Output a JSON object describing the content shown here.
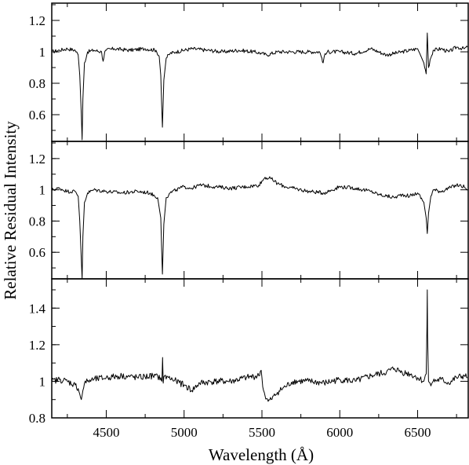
{
  "chart_data": {
    "type": "line",
    "xlabel": "Wavelength (Å)",
    "ylabel": "Relative Residual Intensity",
    "shared_x": true,
    "xlim": [
      4150,
      6830
    ],
    "x_ticks": [
      4500,
      5000,
      5500,
      6000,
      6500
    ],
    "x_tick_labels": [
      "4500",
      "5000",
      "5500",
      "6000",
      "6500"
    ],
    "panels": [
      {
        "ylim": [
          0.43,
          1.31
        ],
        "y_ticks": [
          0.6,
          0.8,
          1.0,
          1.2
        ],
        "y_tick_labels": [
          "0.6",
          "0.8",
          "1",
          "1.2"
        ],
        "series": [
          {
            "x": [
              4150,
              4200,
              4250,
              4300,
              4320,
              4330,
              4340,
              4345,
              4350,
              4360,
              4380,
              4420,
              4470,
              4480,
              4490,
              4500,
              4550,
              4650,
              4750,
              4820,
              4840,
              4850,
              4861,
              4870,
              4885,
              4910,
              4950,
              5050,
              5150,
              5250,
              5350,
              5450,
              5500,
              5530,
              5600,
              5700,
              5800,
              5870,
              5885,
              5893,
              5900,
              5920,
              6000,
              6100,
              6200,
              6300,
              6400,
              6450,
              6500,
              6540,
              6555,
              6562,
              6570,
              6580,
              6600,
              6650,
              6700,
              6750,
              6800,
              6820
            ],
            "y": [
              1.0,
              1.01,
              1.02,
              1.01,
              0.98,
              0.85,
              0.6,
              0.44,
              0.7,
              0.93,
              1.0,
              1.01,
              1.0,
              0.94,
              1.0,
              1.01,
              1.02,
              1.01,
              1.02,
              1.01,
              0.97,
              0.85,
              0.52,
              0.82,
              0.96,
              0.99,
              1.0,
              1.02,
              1.01,
              1.0,
              1.01,
              1.0,
              0.99,
              0.98,
              1.0,
              1.0,
              1.0,
              1.0,
              0.96,
              0.93,
              0.97,
              1.0,
              1.0,
              0.99,
              1.02,
              0.98,
              1.0,
              1.01,
              1.02,
              0.93,
              0.86,
              1.12,
              0.9,
              0.95,
              1.01,
              1.02,
              1.0,
              1.03,
              1.02,
              1.03
            ]
          }
        ]
      },
      {
        "ylim": [
          0.43,
          1.31
        ],
        "y_ticks": [
          0.6,
          0.8,
          1.0,
          1.2
        ],
        "y_tick_labels": [
          "0.6",
          "0.8",
          "1",
          "1.2"
        ],
        "series": [
          {
            "x": [
              4150,
              4200,
              4250,
              4300,
              4320,
              4330,
              4340,
              4345,
              4350,
              4360,
              4380,
              4420,
              4500,
              4600,
              4700,
              4780,
              4830,
              4850,
              4861,
              4870,
              4885,
              4910,
              4950,
              5000,
              5050,
              5100,
              5200,
              5300,
              5400,
              5480,
              5520,
              5560,
              5600,
              5650,
              5700,
              5800,
              5900,
              6000,
              6100,
              6200,
              6250,
              6300,
              6350,
              6400,
              6450,
              6500,
              6540,
              6555,
              6562,
              6570,
              6585,
              6600,
              6650,
              6700,
              6750,
              6800,
              6820
            ],
            "y": [
              1.0,
              1.01,
              0.99,
              0.99,
              0.96,
              0.8,
              0.55,
              0.43,
              0.7,
              0.92,
              0.98,
              1.0,
              0.99,
              0.98,
              0.99,
              0.98,
              0.95,
              0.82,
              0.46,
              0.78,
              0.95,
              0.98,
              1.0,
              1.02,
              1.01,
              1.03,
              1.02,
              1.01,
              1.02,
              1.03,
              1.08,
              1.07,
              1.04,
              1.02,
              1.01,
              0.99,
              0.98,
              1.02,
              1.01,
              0.99,
              0.97,
              0.96,
              0.95,
              0.97,
              0.96,
              0.98,
              0.92,
              0.82,
              0.72,
              0.85,
              0.96,
              1.0,
              0.99,
              1.01,
              1.03,
              1.02,
              1.0
            ]
          }
        ]
      },
      {
        "ylim": [
          0.8,
          1.56
        ],
        "y_ticks": [
          0.8,
          1.0,
          1.2,
          1.4
        ],
        "y_tick_labels": [
          "0.8",
          "1",
          "1.2",
          "1.4"
        ],
        "series": [
          {
            "x": [
              4150,
              4200,
              4250,
              4300,
              4320,
              4330,
              4340,
              4350,
              4360,
              4380,
              4420,
              4500,
              4600,
              4700,
              4800,
              4850,
              4858,
              4862,
              4866,
              4875,
              4900,
              4950,
              5000,
              5050,
              5100,
              5200,
              5300,
              5400,
              5480,
              5495,
              5500,
              5510,
              5520,
              5540,
              5560,
              5600,
              5650,
              5700,
              5800,
              5900,
              6000,
              6100,
              6200,
              6300,
              6350,
              6400,
              6450,
              6500,
              6540,
              6555,
              6560,
              6562,
              6564,
              6570,
              6580,
              6600,
              6650,
              6700,
              6750,
              6800,
              6820
            ],
            "y": [
              1.0,
              1.01,
              1.0,
              0.98,
              0.96,
              0.93,
              0.9,
              0.95,
              0.99,
              1.0,
              1.01,
              1.02,
              1.03,
              1.02,
              1.03,
              1.02,
              1.0,
              1.13,
              0.99,
              1.03,
              1.02,
              1.0,
              0.98,
              0.95,
              0.99,
              1.0,
              1.0,
              1.02,
              1.03,
              1.06,
              1.02,
              0.95,
              0.92,
              0.89,
              0.9,
              0.94,
              0.97,
              1.0,
              1.0,
              0.99,
              1.01,
              1.0,
              1.03,
              1.05,
              1.07,
              1.05,
              1.04,
              1.02,
              1.0,
              1.04,
              1.3,
              1.5,
              1.25,
              1.0,
              0.99,
              1.0,
              1.01,
              0.99,
              1.02,
              1.03,
              1.02
            ]
          }
        ]
      }
    ]
  }
}
